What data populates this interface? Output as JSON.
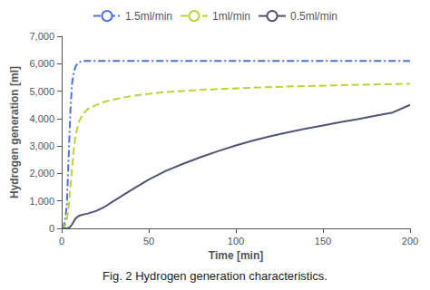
{
  "chart_data": {
    "type": "line",
    "title": "Fig. 2 Hydrogen generation characteristics.",
    "xlabel": "Time [min]",
    "ylabel": "Hydrogen generation [ml]",
    "xlim": [
      0,
      200
    ],
    "ylim": [
      0,
      7000
    ],
    "xticks": [
      0,
      50,
      100,
      150,
      200
    ],
    "yticks": [
      0,
      1000,
      2000,
      3000,
      4000,
      5000,
      6000,
      7000
    ],
    "grid": false,
    "legend": "top",
    "series": [
      {
        "name": "1.5ml/min",
        "line_style": "dashdot",
        "x": [
          0,
          0.5,
          1,
          2,
          3,
          4,
          5,
          6,
          7,
          8,
          9,
          10,
          12,
          15,
          20,
          30,
          50,
          100,
          150,
          200
        ],
        "values": [
          0,
          10,
          50,
          300,
          900,
          2600,
          4300,
          5300,
          5700,
          5900,
          6000,
          6050,
          6100,
          6100,
          6100,
          6100,
          6100,
          6100,
          6100,
          6100
        ]
      },
      {
        "name": "1ml/min",
        "line_style": "dashed",
        "x": [
          0,
          0.5,
          1,
          2,
          3,
          4,
          5,
          6,
          7,
          8,
          10,
          12,
          15,
          20,
          25,
          30,
          40,
          50,
          60,
          80,
          100,
          120,
          150,
          170,
          200
        ],
        "values": [
          0,
          5,
          20,
          100,
          350,
          800,
          1500,
          2200,
          2900,
          3400,
          3900,
          4150,
          4350,
          4500,
          4620,
          4700,
          4820,
          4900,
          4970,
          5050,
          5100,
          5150,
          5200,
          5230,
          5270
        ]
      },
      {
        "name": "0.5ml/min",
        "line_style": "solid",
        "x": [
          0,
          1,
          2,
          3,
          4,
          5,
          6,
          7,
          8,
          9,
          10,
          12,
          15,
          20,
          25,
          30,
          40,
          50,
          60,
          70,
          80,
          90,
          100,
          110,
          120,
          130,
          140,
          150,
          160,
          170,
          180,
          190,
          200
        ],
        "values": [
          0,
          0,
          0,
          5,
          20,
          60,
          150,
          260,
          360,
          420,
          460,
          500,
          540,
          640,
          800,
          1000,
          1400,
          1780,
          2100,
          2360,
          2600,
          2820,
          3020,
          3200,
          3360,
          3500,
          3630,
          3750,
          3870,
          3980,
          4100,
          4220,
          4500
        ]
      }
    ]
  }
}
